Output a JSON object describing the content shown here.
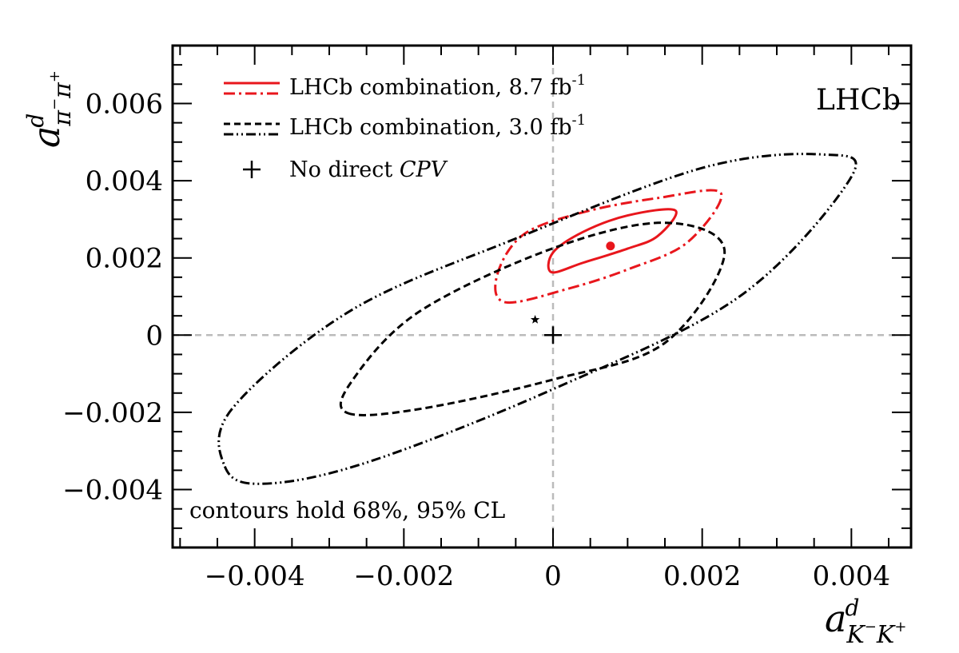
{
  "chart_data": {
    "type": "scatter",
    "title": "LHCb",
    "xlabel": {
      "base": "a",
      "sup": "d",
      "sub": "K",
      "sub_sup1": "−",
      "sub2": "K",
      "sub_sup2": "+"
    },
    "ylabel": {
      "base": "a",
      "sup": "d",
      "sub": "π",
      "sub_sup1": "−",
      "sub2": "π",
      "sub_sup2": "+"
    },
    "xlim": [
      -0.0051,
      0.0048
    ],
    "ylim": [
      -0.0055,
      0.0075
    ],
    "x_ticks": [
      {
        "value": -0.004,
        "label": "−0.004"
      },
      {
        "value": -0.002,
        "label": "−0.002"
      },
      {
        "value": 0,
        "label": "0"
      },
      {
        "value": 0.002,
        "label": "0.002"
      },
      {
        "value": 0.004,
        "label": "0.004"
      }
    ],
    "y_ticks": [
      {
        "value": -0.004,
        "label": "−0.004"
      },
      {
        "value": -0.002,
        "label": "−0.002"
      },
      {
        "value": 0,
        "label": "0"
      },
      {
        "value": 0.002,
        "label": "0.002"
      },
      {
        "value": 0.004,
        "label": "0.004"
      },
      {
        "value": 0.006,
        "label": "0.006"
      }
    ],
    "reference_lines": {
      "x": 0,
      "y": 0,
      "style": "dashed",
      "color": "#bbbbbb"
    },
    "contours": [
      {
        "name": "LHCb combination, 8.7 fb-1 (68% CL)",
        "color": "#e8161c",
        "dash": "solid",
        "center": [
          0.00077,
          0.00231
        ],
        "points": [
          [
            -2e-05,
            0.00163
          ],
          [
            0.00041,
            0.00188
          ],
          [
            0.001,
            0.00224
          ],
          [
            0.0014,
            0.00256
          ],
          [
            0.00164,
            0.00323
          ],
          [
            0.001,
            0.0031
          ],
          [
            0.0004,
            0.00267
          ],
          [
            0.0,
            0.00214
          ]
        ]
      },
      {
        "name": "LHCb combination, 8.7 fb-1 (95% CL)",
        "color": "#e8161c",
        "dash": "dashdot",
        "center": [
          0.00077,
          0.00231
        ],
        "points": [
          [
            -0.00064,
            0.00085
          ],
          [
            0.0002,
            0.0012
          ],
          [
            0.001,
            0.0017
          ],
          [
            0.0018,
            0.0024
          ],
          [
            0.00225,
            0.00368
          ],
          [
            0.0014,
            0.00355
          ],
          [
            0.0004,
            0.00318
          ],
          [
            -0.0004,
            0.0026
          ],
          [
            -0.00075,
            0.00155
          ]
        ]
      },
      {
        "name": "LHCb combination, 3.0 fb-1 (68% CL)",
        "color": "#000000",
        "dash": "dash",
        "center": [
          -0.00024,
          0.0004
        ],
        "points": [
          [
            -0.00275,
            -0.00202
          ],
          [
            -0.00175,
            -0.0019
          ],
          [
            0.0,
            -0.00115
          ],
          [
            0.0015,
            -0.0002
          ],
          [
            0.0023,
            0.00215
          ],
          [
            0.0015,
            0.00291
          ],
          [
            0.0,
            0.00225
          ],
          [
            -0.0018,
            0.0006
          ],
          [
            -0.0027,
            -0.0012
          ]
        ]
      },
      {
        "name": "LHCb combination, 3.0 fb-1 (95% CL)",
        "color": "#000000",
        "dash": "dashdotdot",
        "center": [
          -0.00024,
          0.0004
        ],
        "points": [
          [
            -0.0044,
            -0.0034
          ],
          [
            -0.0039,
            -0.00385
          ],
          [
            -0.0025,
            -0.0033
          ],
          [
            0.0,
            -0.0014
          ],
          [
            0.0025,
            0.001
          ],
          [
            0.004,
            0.0041
          ],
          [
            0.0036,
            0.00468
          ],
          [
            0.002,
            0.00433
          ],
          [
            -0.0005,
            0.0025
          ],
          [
            -0.0027,
            0.00065
          ],
          [
            -0.0043,
            -0.0019
          ]
        ]
      }
    ],
    "markers": [
      {
        "name": "central value 8.7 fb-1",
        "x": 0.00077,
        "y": 0.00231,
        "shape": "circle",
        "color": "#e8161c"
      },
      {
        "name": "central value 3.0 fb-1",
        "x": -0.00024,
        "y": 0.0004,
        "shape": "star",
        "color": "#000000"
      },
      {
        "name": "No direct CPV",
        "x": 0,
        "y": 0,
        "shape": "plus",
        "color": "#000000"
      }
    ],
    "legend": {
      "placement": "top-left",
      "entries": [
        {
          "label_main": "LHCb combination, 8.7 fb",
          "label_sup": "-1",
          "color": "#e8161c",
          "styles": [
            "solid",
            "dashdot"
          ]
        },
        {
          "label_main": "LHCb combination, 3.0 fb",
          "label_sup": "-1",
          "color": "#000000",
          "styles": [
            "dash",
            "dashdotdot"
          ]
        },
        {
          "label_main": "No direct ",
          "label_italic": "CPV",
          "color": "#000000",
          "styles": [
            "plus"
          ]
        }
      ]
    },
    "annotations": [
      {
        "text": "contours hold 68%, 95% CL",
        "placement": "bottom-left"
      }
    ]
  }
}
